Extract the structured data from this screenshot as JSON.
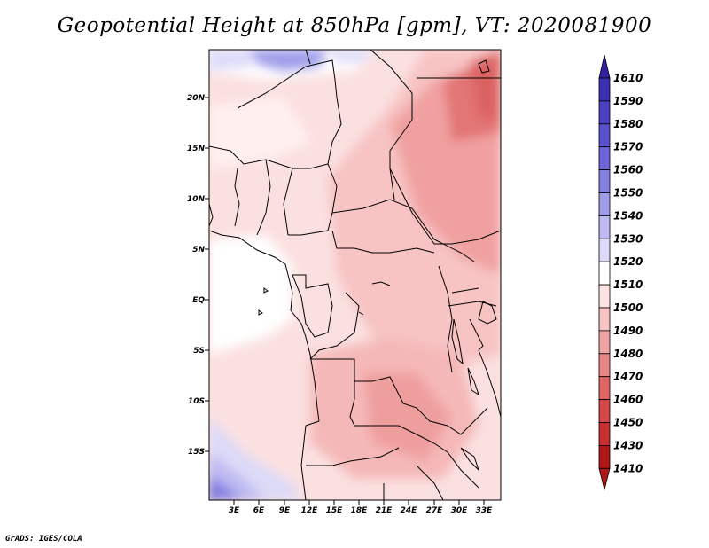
{
  "title": "Geopotential Height at 850hPa [gpm], VT: 2020081900",
  "footer": "GrADS: IGES/COLA",
  "map": {
    "lat_ticks": [
      "20N",
      "15N",
      "10N",
      "5N",
      "EQ",
      "5S",
      "10S",
      "15S"
    ],
    "lon_ticks": [
      "3E",
      "6E",
      "9E",
      "12E",
      "15E",
      "18E",
      "21E",
      "24E",
      "27E",
      "30E",
      "33E"
    ]
  },
  "colorbar": {
    "levels": [
      "1610",
      "1590",
      "1580",
      "1570",
      "1560",
      "1550",
      "1540",
      "1530",
      "1520",
      "1510",
      "1500",
      "1490",
      "1480",
      "1470",
      "1460",
      "1450",
      "1430",
      "1410"
    ],
    "colors": [
      "#3020a0",
      "#3a2fb0",
      "#4a40c0",
      "#5a52cc",
      "#6e66d8",
      "#8480e2",
      "#9f9cea",
      "#bdbaf2",
      "#dcdaf8",
      "#ffffff",
      "#fde3e3",
      "#f7c3c3",
      "#f0a3a3",
      "#e88585",
      "#e06666",
      "#d44848",
      "#c83030",
      "#b01818"
    ]
  }
}
